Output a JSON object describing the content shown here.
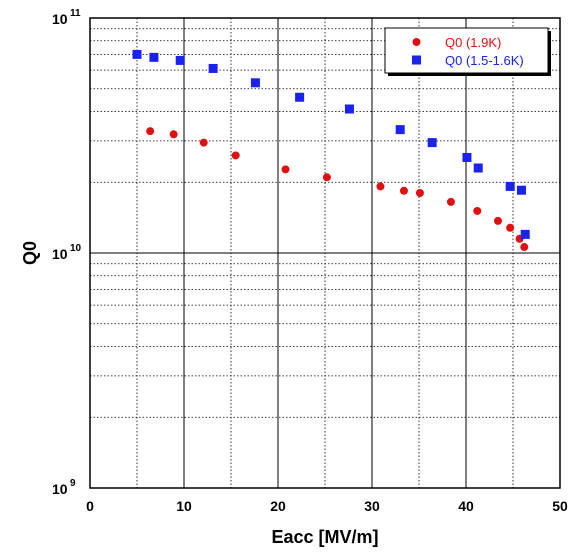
{
  "chart_data": {
    "type": "scatter",
    "xlabel": "Eacc [MV/m]",
    "ylabel": "Q0",
    "xlim": [
      0,
      50
    ],
    "ylim": [
      1000000000.0,
      100000000000.0
    ],
    "yscale": "log",
    "grid": true,
    "legend_position": "top-right",
    "x_ticks": [
      "0",
      "10",
      "20",
      "30",
      "40",
      "50"
    ],
    "y_ticks": [
      {
        "base": "10",
        "exp": "9"
      },
      {
        "base": "10",
        "exp": "10"
      },
      {
        "base": "10",
        "exp": "11"
      }
    ],
    "series": [
      {
        "name": "Q0 (1.9K)",
        "color": "#dd1111",
        "marker": "circle",
        "x": [
          6.4,
          8.9,
          12.1,
          15.5,
          20.8,
          25.2,
          30.9,
          33.4,
          35.1,
          38.4,
          41.2,
          43.4,
          44.7,
          45.7,
          46.2
        ],
        "y": [
          33000000000.0,
          32000000000.0,
          29500000000.0,
          26000000000.0,
          22700000000.0,
          21000000000.0,
          19200000000.0,
          18400000000.0,
          18000000000.0,
          16500000000.0,
          15100000000.0,
          13700000000.0,
          12800000000.0,
          11500000000.0,
          10600000000.0
        ]
      },
      {
        "name": "Q0 (1.5-1.6K)",
        "color": "#1a22ee",
        "marker": "square",
        "x": [
          5.0,
          6.8,
          9.6,
          13.1,
          17.6,
          22.3,
          27.6,
          33.0,
          36.4,
          40.1,
          41.3,
          44.7,
          45.9,
          46.3
        ],
        "y": [
          70000000000.0,
          68000000000.0,
          66000000000.0,
          61000000000.0,
          53000000000.0,
          46000000000.0,
          41000000000.0,
          33500000000.0,
          29500000000.0,
          25500000000.0,
          23000000000.0,
          19200000000.0,
          18500000000.0,
          12000000000.0
        ]
      }
    ]
  }
}
